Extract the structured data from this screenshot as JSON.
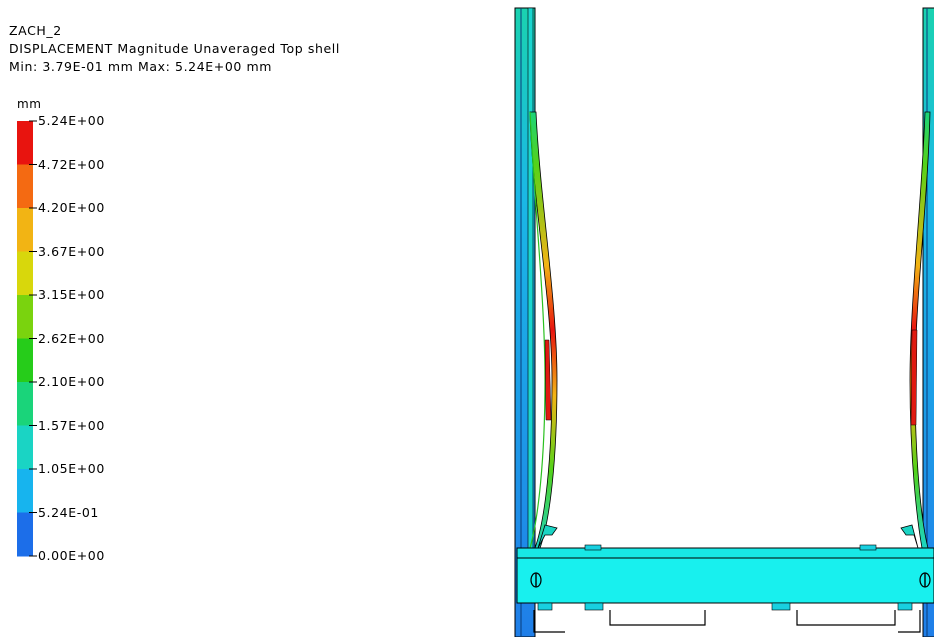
{
  "header": {
    "model_name": "ZACH_2",
    "result_title": "DISPLACEMENT  Magnitude  Unaveraged  Top shell",
    "min_max": "Min: 3.79E-01 mm   Max: 5.24E+00 mm"
  },
  "legend": {
    "unit": "mm",
    "ticks": [
      "5.24E+00",
      "4.72E+00",
      "4.20E+00",
      "3.67E+00",
      "3.15E+00",
      "2.62E+00",
      "2.10E+00",
      "1.57E+00",
      "1.05E+00",
      "5.24E-01",
      "0.00E+00"
    ],
    "colors": [
      "#e8140f",
      "#f46a12",
      "#f2b414",
      "#d8d70c",
      "#7ad30e",
      "#26cc1a",
      "#1ad47a",
      "#1ad4c4",
      "#17b4ee",
      "#1c6ee9",
      "#1a22e6"
    ]
  },
  "model": {
    "colors": {
      "frame_blue": "#1f8ee8",
      "frame_cyan": "#20d6e2",
      "plate": "#18f0ee",
      "peak": "#e01a10"
    },
    "icons": [
      "bolt-head-icon",
      "bolt-head-icon"
    ]
  }
}
